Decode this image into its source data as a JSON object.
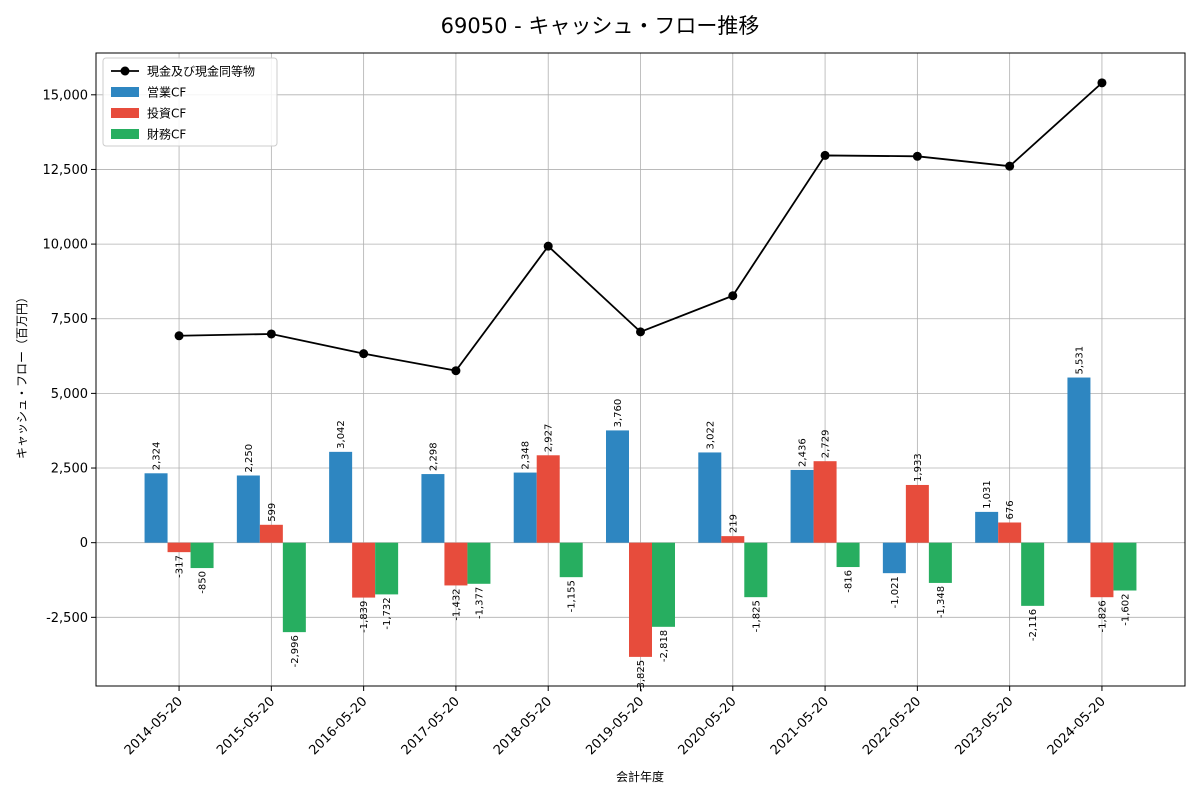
{
  "chart_data": {
    "type": "bar",
    "title": "69050 - キャッシュ・フロー推移",
    "xlabel": "会計年度",
    "ylabel": "キャッシュ・フロー（百万円）",
    "ylim": [
      -4800,
      16400
    ],
    "yticks": [
      -2500,
      0,
      2500,
      5000,
      7500,
      10000,
      12500,
      15000
    ],
    "ytick_labels": [
      "-2,500",
      "0",
      "2,500",
      "5,000",
      "7,500",
      "10,000",
      "12,500",
      "15,000"
    ],
    "grid": true,
    "legend_position": "top-left",
    "categories": [
      "2014-05-20",
      "2015-05-20",
      "2016-05-20",
      "2017-05-20",
      "2018-05-20",
      "2019-05-20",
      "2020-05-20",
      "2021-05-20",
      "2022-05-20",
      "2023-05-20",
      "2024-05-20"
    ],
    "series": [
      {
        "name": "営業CF",
        "kind": "bar",
        "color": "#2e86c1",
        "values": [
          2324,
          2250,
          3042,
          2298,
          2348,
          3760,
          3022,
          2436,
          -1021,
          1031,
          5531
        ],
        "labels": [
          "2,324",
          "2,250",
          "3,042",
          "2,298",
          "2,348",
          "3,760",
          "3,022",
          "2,436",
          "-1,021",
          "1,031",
          "5,531"
        ]
      },
      {
        "name": "投資CF",
        "kind": "bar",
        "color": "#e74c3c",
        "values": [
          -317,
          599,
          -1839,
          -1432,
          2927,
          -3825,
          219,
          2729,
          1933,
          676,
          -1826
        ],
        "labels": [
          "-317",
          "599",
          "-1,839",
          "-1,432",
          "2,927",
          "-3,825",
          "219",
          "2,729",
          "1,933",
          "676",
          "-1,826"
        ]
      },
      {
        "name": "財務CF",
        "kind": "bar",
        "color": "#27ae60",
        "values": [
          -850,
          -2996,
          -1732,
          -1377,
          -1155,
          -2818,
          -1825,
          -816,
          -1348,
          -2116,
          -1602
        ],
        "labels": [
          "-850",
          "-2,996",
          "-1,732",
          "-1,377",
          "-1,155",
          "-2,818",
          "-1,825",
          "-816",
          "-1,348",
          "-2,116",
          "-1,602"
        ]
      },
      {
        "name": "現金及び現金同等物",
        "kind": "line",
        "color": "#000000",
        "values": [
          6930,
          6990,
          6330,
          5760,
          9930,
          7060,
          8270,
          12970,
          12940,
          12610,
          15400
        ]
      }
    ]
  }
}
